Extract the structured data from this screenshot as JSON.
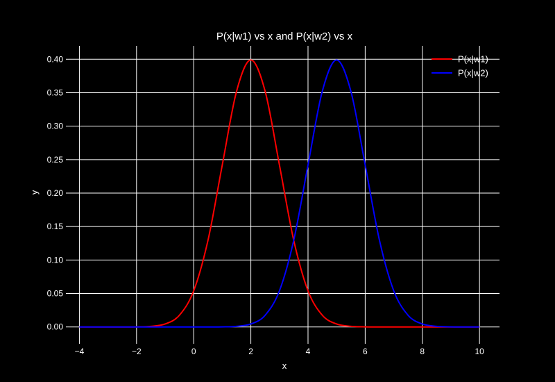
{
  "chart_data": {
    "type": "line",
    "title": "P(x|w1) vs x and P(x|w2) vs x",
    "xlabel": "x",
    "ylabel": "y",
    "xlim": [
      -4.35,
      10.7
    ],
    "ylim": [
      -0.02,
      0.42
    ],
    "xticks": [
      -4,
      -2,
      0,
      2,
      4,
      6,
      8,
      10
    ],
    "xtick_labels": [
      "−4",
      "−2",
      "0",
      "2",
      "4",
      "6",
      "8",
      "10"
    ],
    "yticks": [
      0.0,
      0.05,
      0.1,
      0.15,
      0.2,
      0.25,
      0.3,
      0.35,
      0.4
    ],
    "ytick_labels": [
      "0.00",
      "0.05",
      "0.10",
      "0.15",
      "0.20",
      "0.25",
      "0.30",
      "0.35",
      "0.40"
    ],
    "grid": true,
    "legend_position": "top-right",
    "background": "#000000",
    "x": [
      -4,
      -3.5,
      -3,
      -2.5,
      -2,
      -1.5,
      -1,
      -0.5,
      0,
      0.5,
      1,
      1.5,
      2,
      2.5,
      3,
      3.5,
      4,
      4.5,
      5,
      5.5,
      6,
      6.5,
      7,
      7.5,
      8,
      8.5,
      9,
      9.5,
      10
    ],
    "series": [
      {
        "name": "P(x|w1)",
        "color": "#ff0000",
        "values": [
          0.0,
          0.0,
          0.0,
          0.0,
          0.0001,
          0.0009,
          0.0044,
          0.0175,
          0.054,
          0.1295,
          0.242,
          0.3521,
          0.3989,
          0.3521,
          0.242,
          0.1295,
          0.054,
          0.0175,
          0.0044,
          0.0009,
          0.0001,
          0.0,
          0.0,
          0.0,
          0.0,
          0.0,
          0.0,
          0.0,
          0.0
        ]
      },
      {
        "name": "P(x|w2)",
        "color": "#0000ff",
        "values": [
          0.0,
          0.0,
          0.0,
          0.0,
          0.0,
          0.0,
          0.0,
          0.0,
          0.0,
          0.0,
          0.0001,
          0.0009,
          0.0044,
          0.0175,
          0.054,
          0.1295,
          0.242,
          0.3521,
          0.3989,
          0.3521,
          0.242,
          0.1295,
          0.054,
          0.0175,
          0.0044,
          0.0009,
          0.0001,
          0.0,
          0.0
        ]
      }
    ]
  }
}
